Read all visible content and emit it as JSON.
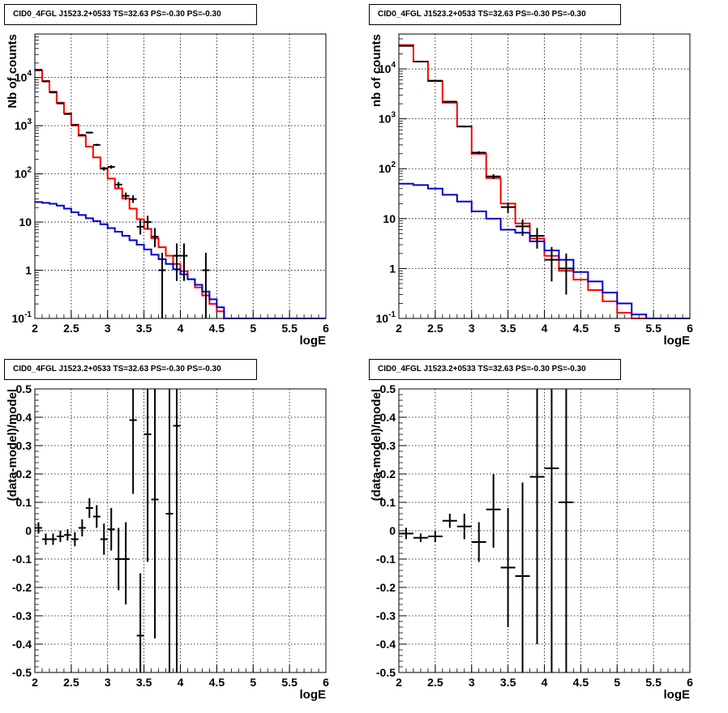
{
  "colors": {
    "data": "#000000",
    "total_model": "#ff0000",
    "background_model": "#0000cc"
  },
  "chart_data": [
    {
      "type": "line",
      "title": "CID0_4FGL J1523.2+0533 TS=32.63 PS=-0.30 PS=-0.30",
      "xlabel": "logE",
      "ylabel": "Nb of counts",
      "xlim": [
        2,
        6
      ],
      "ylim": [
        0.1,
        80000
      ],
      "yscale": "log",
      "grid": true,
      "xticks": [
        "2",
        "2.5",
        "3",
        "3.5",
        "4",
        "4.5",
        "5",
        "5.5",
        "6"
      ],
      "yticks": [
        "10^-1",
        "1",
        "10",
        "10^2",
        "10^3",
        "10^4"
      ],
      "bin_edges": [
        2.0,
        2.1,
        2.2,
        2.3,
        2.4,
        2.5,
        2.6,
        2.7,
        2.8,
        2.9,
        3.0,
        3.1,
        3.2,
        3.3,
        3.4,
        3.5,
        3.6,
        3.7,
        3.8,
        3.9,
        4.0,
        4.1,
        4.2,
        4.3,
        4.4,
        4.5,
        4.6,
        4.7,
        4.8,
        4.9,
        5.0,
        5.1,
        5.2,
        5.3,
        5.4,
        5.5,
        5.6,
        5.7,
        5.8,
        5.9,
        6.0
      ],
      "series": [
        {
          "values": [
            14000,
            8500,
            5100,
            3000,
            1800,
            1050,
            620,
            370,
            220,
            132,
            80,
            50,
            31,
            19,
            11.5,
            7.2,
            4.6,
            3.0,
            2.0,
            1.35,
            0.95,
            0.65,
            0.44,
            0.3,
            0.2,
            0.14,
            0.1,
            0.1,
            0.1,
            0.1,
            0.1,
            0.1,
            0.1,
            0.1,
            0.1,
            0.1,
            0.1,
            0.1,
            0.1,
            0.1
          ]
        },
        {
          "values": [
            26,
            25,
            24,
            22,
            19,
            16,
            14,
            12,
            10.5,
            9,
            7.5,
            6.3,
            5.2,
            4.2,
            3.4,
            2.7,
            2.1,
            1.7,
            1.35,
            1.05,
            0.82,
            0.65,
            0.5,
            0.36,
            0.25,
            0.17,
            0.1,
            0.1,
            0.1,
            0.1,
            0.1,
            0.1,
            0.1,
            0.1,
            0.1,
            0.1,
            0.1,
            0.1,
            0.1,
            0.1
          ]
        }
      ],
      "points": [
        {
          "x": 2.05,
          "y": 14500,
          "lo": 14300,
          "hi": 14700
        },
        {
          "x": 2.15,
          "y": 8300,
          "lo": 8200,
          "hi": 8400
        },
        {
          "x": 2.25,
          "y": 4900,
          "lo": 4800,
          "hi": 5000
        },
        {
          "x": 2.35,
          "y": 2900,
          "lo": 2850,
          "hi": 2950
        },
        {
          "x": 2.45,
          "y": 1750,
          "lo": 1710,
          "hi": 1790
        },
        {
          "x": 2.55,
          "y": 1020,
          "lo": 990,
          "hi": 1050
        },
        {
          "x": 2.65,
          "y": 640,
          "lo": 615,
          "hi": 665
        },
        {
          "x": 2.75,
          "y": 720,
          "lo": 690,
          "hi": 750
        },
        {
          "x": 2.85,
          "y": 400,
          "lo": 380,
          "hi": 420
        },
        {
          "x": 2.95,
          "y": 128,
          "lo": 117,
          "hi": 139
        },
        {
          "x": 3.05,
          "y": 140,
          "lo": 128,
          "hi": 152
        },
        {
          "x": 3.15,
          "y": 60,
          "lo": 52,
          "hi": 68
        },
        {
          "x": 3.25,
          "y": 35,
          "lo": 29,
          "hi": 41
        },
        {
          "x": 3.35,
          "y": 30,
          "lo": 25,
          "hi": 36
        },
        {
          "x": 3.45,
          "y": 8,
          "lo": 5.5,
          "hi": 11
        },
        {
          "x": 3.55,
          "y": 10,
          "lo": 7,
          "hi": 13.5
        },
        {
          "x": 3.65,
          "y": 5,
          "lo": 3,
          "hi": 7.5
        },
        {
          "x": 3.75,
          "y": 1,
          "lo": 0.1,
          "hi": 2.3
        },
        {
          "x": 3.95,
          "y": 2,
          "lo": 0.6,
          "hi": 3.6
        },
        {
          "x": 4.05,
          "y": 2,
          "lo": 0.6,
          "hi": 3.6
        },
        {
          "x": 4.35,
          "y": 1,
          "lo": 0.1,
          "hi": 2.3
        }
      ]
    },
    {
      "type": "line",
      "title": "CID0_4FGL J1523.2+0533 TS=32.63 PS=-0.30 PS=-0.30",
      "xlabel": "logE",
      "ylabel": "nb of counts",
      "xlim": [
        2,
        6
      ],
      "ylim": [
        0.1,
        50000
      ],
      "yscale": "log",
      "grid": true,
      "xticks": [
        "2",
        "2.5",
        "3",
        "3.5",
        "4",
        "4.5",
        "5",
        "5.5",
        "6"
      ],
      "yticks": [
        "10^-1",
        "1",
        "10",
        "10^2",
        "10^3",
        "10^4"
      ],
      "bin_edges": [
        2.0,
        2.2,
        2.4,
        2.6,
        2.8,
        3.0,
        3.2,
        3.4,
        3.6,
        3.8,
        4.0,
        4.2,
        4.4,
        4.6,
        4.8,
        5.0,
        5.2,
        5.4,
        5.6,
        5.8,
        6.0
      ],
      "series": [
        {
          "values": [
            30000,
            14000,
            5700,
            2100,
            700,
            200,
            65,
            20,
            8,
            4,
            1.8,
            0.9,
            0.6,
            0.37,
            0.22,
            0.13,
            0.1,
            0.1,
            0.1,
            0.1
          ]
        },
        {
          "values": [
            50,
            47,
            40,
            30,
            22,
            14,
            10,
            6,
            5.2,
            3.5,
            2.3,
            1.5,
            0.85,
            0.55,
            0.33,
            0.2,
            0.12,
            0.1,
            0.1,
            0.1
          ]
        }
      ],
      "points": [
        {
          "x": 2.1,
          "y": 29000,
          "lo": 28800,
          "hi": 29200
        },
        {
          "x": 2.3,
          "y": 14000,
          "lo": 13900,
          "hi": 14100
        },
        {
          "x": 2.5,
          "y": 5800,
          "lo": 5720,
          "hi": 5880
        },
        {
          "x": 2.7,
          "y": 2200,
          "lo": 2150,
          "hi": 2250
        },
        {
          "x": 2.9,
          "y": 700,
          "lo": 675,
          "hi": 725
        },
        {
          "x": 3.1,
          "y": 210,
          "lo": 196,
          "hi": 224
        },
        {
          "x": 3.3,
          "y": 70,
          "lo": 62,
          "hi": 78
        },
        {
          "x": 3.5,
          "y": 17,
          "lo": 13,
          "hi": 21
        },
        {
          "x": 3.7,
          "y": 7,
          "lo": 4.5,
          "hi": 9.6
        },
        {
          "x": 3.9,
          "y": 4.5,
          "lo": 2.5,
          "hi": 6.5
        },
        {
          "x": 4.1,
          "y": 1.5,
          "lo": 0.55,
          "hi": 2.7
        },
        {
          "x": 4.3,
          "y": 1,
          "lo": 0.3,
          "hi": 2
        }
      ]
    },
    {
      "type": "scatter",
      "title": "CID0_4FGL J1523.2+0533 TS=32.63 PS=-0.30 PS=-0.30",
      "xlabel": "logE",
      "ylabel": "(data-model)/model",
      "xlim": [
        2,
        6
      ],
      "ylim": [
        -0.5,
        0.5
      ],
      "grid": true,
      "xticks": [
        "2",
        "2.5",
        "3",
        "3.5",
        "4",
        "4.5",
        "5",
        "5.5",
        "6"
      ],
      "yticks": [
        "-0.5",
        "-0.4",
        "-0.3",
        "-0.2",
        "-0.1",
        "0",
        "0.1",
        "0.2",
        "0.3",
        "0.4",
        "0.5"
      ],
      "points": [
        {
          "x": 2.05,
          "y": 0.01,
          "lo": -0.01,
          "hi": 0.03
        },
        {
          "x": 2.15,
          "y": -0.03,
          "lo": -0.05,
          "hi": -0.01
        },
        {
          "x": 2.25,
          "y": -0.03,
          "lo": -0.05,
          "hi": -0.01
        },
        {
          "x": 2.35,
          "y": -0.02,
          "lo": -0.04,
          "hi": 0.0
        },
        {
          "x": 2.45,
          "y": -0.015,
          "lo": -0.035,
          "hi": 0.005
        },
        {
          "x": 2.55,
          "y": -0.03,
          "lo": -0.055,
          "hi": -0.005
        },
        {
          "x": 2.65,
          "y": 0.01,
          "lo": -0.02,
          "hi": 0.04
        },
        {
          "x": 2.75,
          "y": 0.08,
          "lo": 0.045,
          "hi": 0.115
        },
        {
          "x": 2.85,
          "y": 0.05,
          "lo": 0.01,
          "hi": 0.09
        },
        {
          "x": 2.95,
          "y": -0.03,
          "lo": -0.085,
          "hi": 0.025
        },
        {
          "x": 3.05,
          "y": 0.005,
          "lo": -0.07,
          "hi": 0.08
        },
        {
          "x": 3.15,
          "y": -0.1,
          "lo": -0.21,
          "hi": 0.01
        },
        {
          "x": 3.25,
          "y": -0.1,
          "lo": -0.26,
          "hi": 0.03
        },
        {
          "x": 3.35,
          "y": 0.39,
          "lo": 0.13,
          "hi": 0.5
        },
        {
          "x": 3.45,
          "y": -0.37,
          "lo": -0.5,
          "hi": -0.15
        },
        {
          "x": 3.55,
          "y": 0.34,
          "lo": -0.11,
          "hi": 0.5
        },
        {
          "x": 3.65,
          "y": 0.11,
          "lo": -0.38,
          "hi": 0.5
        },
        {
          "x": 3.85,
          "y": 0.06,
          "lo": -0.5,
          "hi": 0.5
        },
        {
          "x": 3.95,
          "y": 0.37,
          "lo": -0.5,
          "hi": 0.5
        }
      ]
    },
    {
      "type": "scatter",
      "title": "CID0_4FGL J1523.2+0533 TS=32.63 PS=-0.30 PS=-0.30",
      "xlabel": "logE",
      "ylabel": "(data-model)/model",
      "xlim": [
        2,
        6
      ],
      "ylim": [
        -0.5,
        0.5
      ],
      "grid": true,
      "xticks": [
        "2",
        "2.5",
        "3",
        "3.5",
        "4",
        "4.5",
        "5",
        "5.5",
        "6"
      ],
      "yticks": [
        "-0.5",
        "-0.4",
        "-0.3",
        "-0.2",
        "-0.1",
        "0",
        "0.1",
        "0.2",
        "0.3",
        "0.4",
        "0.5"
      ],
      "points": [
        {
          "x": 2.1,
          "y": -0.01,
          "lo": -0.03,
          "hi": 0.01
        },
        {
          "x": 2.3,
          "y": -0.025,
          "lo": -0.04,
          "hi": -0.01
        },
        {
          "x": 2.5,
          "y": -0.02,
          "lo": -0.04,
          "hi": 0.0
        },
        {
          "x": 2.7,
          "y": 0.035,
          "lo": 0.01,
          "hi": 0.06
        },
        {
          "x": 2.9,
          "y": 0.015,
          "lo": -0.03,
          "hi": 0.06
        },
        {
          "x": 3.1,
          "y": -0.04,
          "lo": -0.11,
          "hi": 0.03
        },
        {
          "x": 3.3,
          "y": 0.075,
          "lo": -0.06,
          "hi": 0.2
        },
        {
          "x": 3.5,
          "y": -0.13,
          "lo": -0.34,
          "hi": 0.08
        },
        {
          "x": 3.7,
          "y": -0.16,
          "lo": -0.5,
          "hi": 0.17
        },
        {
          "x": 3.9,
          "y": 0.19,
          "lo": -0.4,
          "hi": 0.5
        },
        {
          "x": 4.1,
          "y": 0.22,
          "lo": -0.5,
          "hi": 0.5
        },
        {
          "x": 4.3,
          "y": 0.1,
          "lo": -0.5,
          "hi": 0.5
        }
      ]
    }
  ]
}
